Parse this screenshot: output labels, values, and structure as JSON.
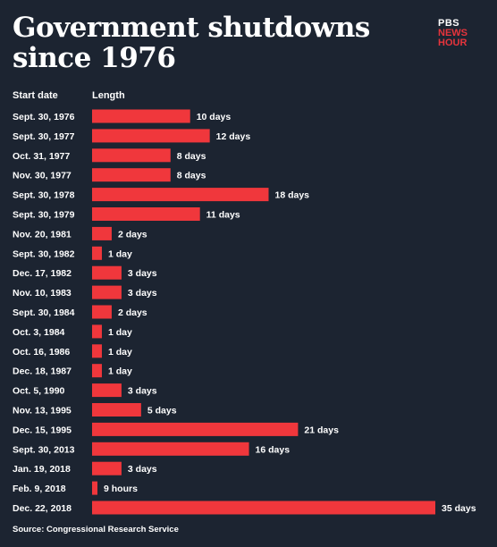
{
  "title": "Government shutdowns since 1976",
  "logo": {
    "line1": "PBS",
    "line2": "NEWS",
    "line3": "HOUR"
  },
  "headers": {
    "start_date": "Start date",
    "length": "Length"
  },
  "source": "Source: Congressional Research Service",
  "colors": {
    "background": "#1c2431",
    "bar": "#f0373c",
    "text": "#ffffff",
    "logo_accent": "#e6343c"
  },
  "chart_data": {
    "type": "bar",
    "orientation": "horizontal",
    "title": "Government shutdowns since 1976",
    "categories": [
      "Sept. 30, 1976",
      "Sept. 30, 1977",
      "Oct. 31, 1977",
      "Nov. 30, 1977",
      "Sept. 30, 1978",
      "Sept. 30, 1979",
      "Nov. 20, 1981",
      "Sept. 30, 1982",
      "Dec. 17, 1982",
      "Nov. 10, 1983",
      "Sept. 30, 1984",
      "Oct. 3, 1984",
      "Oct. 16, 1986",
      "Dec. 18, 1987",
      "Oct. 5, 1990",
      "Nov. 13, 1995",
      "Dec. 15, 1995",
      "Sept. 30, 2013",
      "Jan. 19, 2018",
      "Feb. 9, 2018",
      "Dec. 22, 2018"
    ],
    "values": [
      10,
      12,
      8,
      8,
      18,
      11,
      2,
      1,
      3,
      3,
      2,
      1,
      1,
      1,
      3,
      5,
      21,
      16,
      3,
      0.375,
      35
    ],
    "value_labels": [
      "10 days",
      "12 days",
      "8 days",
      "8 days",
      "18 days",
      "11 days",
      "2 days",
      "1 day",
      "3 days",
      "3 days",
      "2 days",
      "1 day",
      "1 day",
      "1 day",
      "3 days",
      "5 days",
      "21 days",
      "16 days",
      "3 days",
      "9 hours",
      "35 days"
    ],
    "xlabel": "Length",
    "ylabel": "Start date",
    "unit": "days",
    "xlim": [
      0,
      35
    ],
    "grid": false,
    "legend": "none"
  }
}
